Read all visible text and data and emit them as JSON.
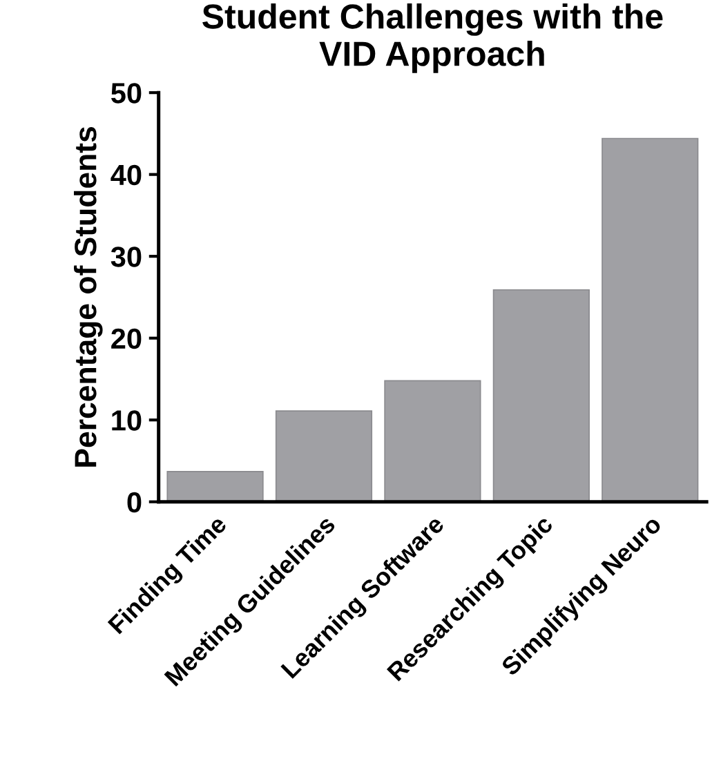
{
  "chart_data": {
    "type": "bar",
    "title": "Student Challenges with the\nVID Approach",
    "ylabel": "Percentage of Students",
    "categories": [
      "Finding Time",
      "Meeting Guidelines",
      "Learning Software",
      "Researching Topic",
      "Simplifying Neuro"
    ],
    "values": [
      3.7,
      11.1,
      14.8,
      25.9,
      44.4
    ],
    "color": "#a0a0a4",
    "ylim": [
      0,
      50
    ],
    "yticks": [
      0,
      10,
      20,
      30,
      40,
      50
    ],
    "grid": false,
    "legend": false
  }
}
